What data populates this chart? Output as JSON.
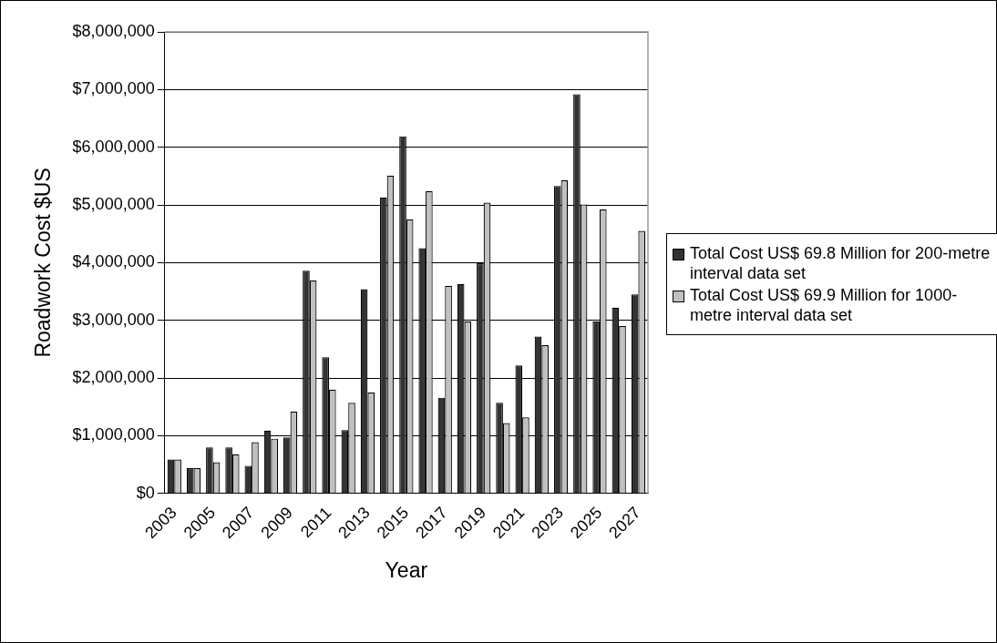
{
  "chart_data": {
    "type": "bar",
    "xlabel": "Year",
    "ylabel": "Roadwork Cost $US",
    "categories": [
      "2003",
      null,
      "2005",
      null,
      "2007",
      null,
      "2009",
      null,
      "2011",
      null,
      "2013",
      null,
      "2015",
      null,
      "2017",
      null,
      "2019",
      null,
      "2021",
      null,
      "2023",
      null,
      "2025",
      null,
      "2027"
    ],
    "series": [
      {
        "name": "Total Cost US$ 69.8 Million for 200-metre interval data set",
        "color": "#333333",
        "values": [
          590000,
          440000,
          800000,
          800000,
          480000,
          1090000,
          970000,
          3860000,
          2360000,
          1100000,
          3540000,
          5130000,
          6190000,
          4250000,
          1660000,
          3630000,
          3990000,
          1570000,
          2220000,
          2720000,
          5330000,
          6920000,
          2980000,
          3220000,
          3450000
        ]
      },
      {
        "name": "Total Cost US$ 69.9 Million for 1000-metre interval data set",
        "color": "#c0c0c0",
        "values": [
          590000,
          440000,
          540000,
          680000,
          890000,
          950000,
          1420000,
          3690000,
          1800000,
          1570000,
          1750000,
          5510000,
          4750000,
          5240000,
          3600000,
          2980000,
          5040000,
          1220000,
          1320000,
          2570000,
          5430000,
          5010000,
          4920000,
          2900000,
          4550000
        ]
      }
    ],
    "ylim": [
      0,
      8000000
    ],
    "yticks": [
      {
        "value": 0,
        "label": "$0"
      },
      {
        "value": 1000000,
        "label": "$1,000,000"
      },
      {
        "value": 2000000,
        "label": "$2,000,000"
      },
      {
        "value": 3000000,
        "label": "$3,000,000"
      },
      {
        "value": 4000000,
        "label": "$4,000,000"
      },
      {
        "value": 5000000,
        "label": "$5,000,000"
      },
      {
        "value": 6000000,
        "label": "$6,000,000"
      },
      {
        "value": 7000000,
        "label": "$7,000,000"
      },
      {
        "value": 8000000,
        "label": "$8,000,000"
      }
    ],
    "grid": "y",
    "legend": "right"
  }
}
